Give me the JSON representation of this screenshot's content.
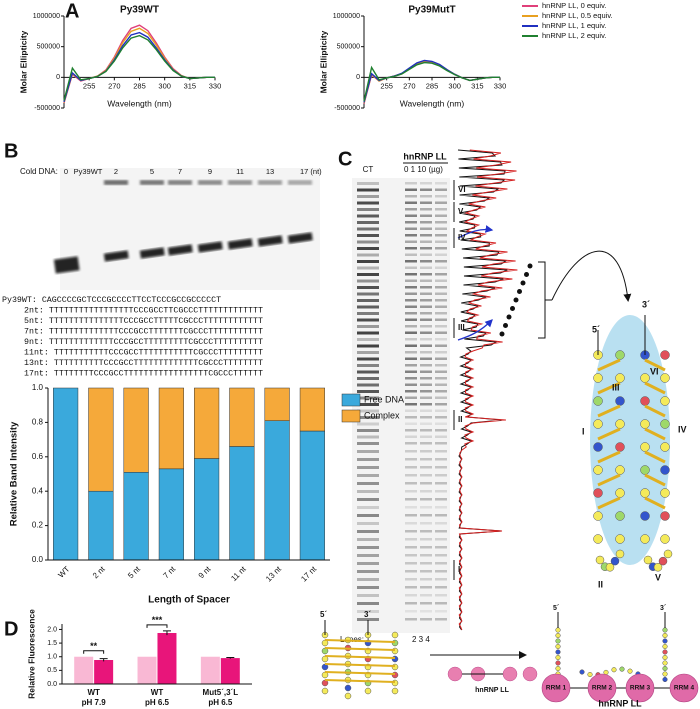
{
  "panels": [
    "A",
    "B",
    "C",
    "D"
  ],
  "chart_data": [
    {
      "type": "line",
      "title": "Py39WT",
      "x_label": "Wavelength (nm)",
      "y_label": "Molar Ellipticity",
      "x": [
        240,
        245,
        250,
        255,
        260,
        265,
        270,
        275,
        280,
        285,
        290,
        295,
        300,
        305,
        310,
        315,
        320,
        325,
        330
      ],
      "xlim": [
        240,
        330
      ],
      "xticks": [
        255,
        270,
        285,
        300,
        315,
        330
      ],
      "ylim": [
        -500000,
        1000000
      ],
      "yticks": [
        -500000,
        0,
        500000,
        1000000
      ],
      "series": [
        {
          "color": "#e0407a",
          "values": [
            -420000,
            50000,
            -60000,
            -20000,
            20000,
            120000,
            330000,
            600000,
            800000,
            850000,
            760000,
            560000,
            330000,
            140000,
            30000,
            -20000,
            -10000,
            0,
            0
          ]
        },
        {
          "color": "#e8a020",
          "values": [
            -410000,
            60000,
            -50000,
            -20000,
            20000,
            110000,
            310000,
            565000,
            750000,
            800000,
            715000,
            525000,
            310000,
            130000,
            25000,
            -20000,
            -10000,
            0,
            0
          ]
        },
        {
          "color": "#2030c0",
          "values": [
            -400000,
            70000,
            -50000,
            -20000,
            15000,
            100000,
            285000,
            515000,
            690000,
            730000,
            655000,
            480000,
            285000,
            120000,
            20000,
            -20000,
            -10000,
            0,
            0
          ]
        },
        {
          "color": "#208030",
          "values": [
            -380000,
            150000,
            -40000,
            -20000,
            15000,
            95000,
            265000,
            480000,
            640000,
            680000,
            610000,
            450000,
            265000,
            110000,
            20000,
            -20000,
            -10000,
            0,
            0
          ]
        }
      ]
    },
    {
      "type": "line",
      "title": "Py39MutT",
      "x_label": "Wavelength (nm)",
      "y_label": "Molar Ellipticity",
      "x": [
        240,
        245,
        250,
        255,
        260,
        265,
        270,
        275,
        280,
        285,
        290,
        295,
        300,
        305,
        310,
        315,
        320,
        325,
        330
      ],
      "xlim": [
        240,
        330
      ],
      "xticks": [
        255,
        270,
        285,
        300,
        315,
        330
      ],
      "ylim": [
        -500000,
        1000000
      ],
      "yticks": [
        -500000,
        0,
        500000,
        1000000
      ],
      "legend": "outside-right",
      "series": [
        {
          "name": "hnRNP LL, 0 equiv.",
          "color": "#e0407a",
          "values": [
            -430000,
            40000,
            -60000,
            -10000,
            20000,
            60000,
            140000,
            220000,
            260000,
            250000,
            200000,
            120000,
            50000,
            -10000,
            -50000,
            -30000,
            -10000,
            0,
            0
          ]
        },
        {
          "name": "hnRNP LL, 0.5 equiv.",
          "color": "#e8a020",
          "values": [
            -420000,
            50000,
            -60000,
            -10000,
            20000,
            60000,
            140000,
            225000,
            265000,
            255000,
            205000,
            125000,
            50000,
            -10000,
            -50000,
            -30000,
            -10000,
            0,
            0
          ]
        },
        {
          "name": "hnRNP LL, 1 equiv.",
          "color": "#2030c0",
          "values": [
            -410000,
            60000,
            -50000,
            -10000,
            20000,
            65000,
            150000,
            235000,
            275000,
            260000,
            210000,
            125000,
            50000,
            -10000,
            -50000,
            -30000,
            -10000,
            0,
            0
          ]
        },
        {
          "name": "hnRNP LL, 2 equiv.",
          "color": "#208030",
          "values": [
            -390000,
            160000,
            -40000,
            -10000,
            15000,
            55000,
            130000,
            205000,
            240000,
            230000,
            185000,
            110000,
            45000,
            -10000,
            -50000,
            -30000,
            -10000,
            0,
            0
          ]
        }
      ]
    },
    {
      "type": "stacked_bar",
      "x_label": "Length of Spacer",
      "y_label": "Relative Band Intensity",
      "categories": [
        "WT",
        "2 nt",
        "5 nt",
        "7 nt",
        "9 nt",
        "11 nt",
        "13 nt",
        "17 nt"
      ],
      "ylim": [
        0,
        1
      ],
      "yticks": [
        {
          "value": 0,
          "label": "0.0"
        },
        0.2,
        0.4,
        0.6,
        0.8,
        {
          "value": 1,
          "label": "1.0"
        }
      ],
      "legend": "right",
      "series": [
        {
          "name": "Free DNA",
          "color": "#3aa9dc",
          "values": [
            1.0,
            0.4,
            0.51,
            0.53,
            0.59,
            0.66,
            0.81,
            0.75
          ]
        },
        {
          "name": "Complex",
          "color": "#f5a93a",
          "values": [
            0,
            0.6,
            0.49,
            0.47,
            0.41,
            0.34,
            0.19,
            0.25
          ]
        }
      ]
    },
    {
      "type": "grouped_bar",
      "y_label": "Relative Fluorescence",
      "categories": [
        [
          "WT",
          "pH 7.9"
        ],
        [
          "WT",
          "pH 6.5"
        ],
        [
          "Mut5´,3´L",
          "pH 6.5"
        ]
      ],
      "ylim": [
        0,
        2.2
      ],
      "yticks": [
        {
          "value": 0,
          "label": "0.0"
        },
        0.5,
        {
          "value": 1,
          "label": "1.0"
        },
        1.5,
        {
          "value": 2,
          "label": "2.0"
        }
      ],
      "annotations": [
        "**",
        "***"
      ],
      "series": [
        {
          "color": "#f9b8d4",
          "values": [
            1.0,
            1.0,
            1.0
          ],
          "errors": [
            0,
            0,
            0
          ]
        },
        {
          "color": "#e8157a",
          "values": [
            0.88,
            1.87,
            0.95
          ],
          "errors": [
            0.05,
            0.08,
            0.02
          ]
        }
      ]
    }
  ],
  "gel_b": {
    "cold_dna": "Cold DNA:",
    "lanes": [
      "0",
      "Py39WT",
      "2",
      "5",
      "7",
      "9",
      "11",
      "13",
      "17 (nt)"
    ]
  },
  "sequences": [
    "Py39WT: CAGCCCCGCTCCCGCCCCTTCCTCCCGCCGCCCCCT",
    "2nt: TTTTTTTTTTTTTTTTTCCCGCCTTCGCCCTTTTTTTTTTTTT",
    "5nt: TTTTTTTTTTTTTTTCCCGCCTTTTTCGCCCTTTTTTTTTTTT",
    "7nt: TTTTTTTTTTTTTTCCCGCCTTTTTTTCGCCCTTTTTTTTTTT",
    "9nt: TTTTTTTTTTTTTCCCGCCTTTTTTTTTCGCCCTTTTTTTTTT",
    "11nt: TTTTTTTTTTTCCCGCCTTTTTTTTTTTCGCCCTTTTTTTTT",
    "13nt: TTTTTTTTTTCCCGCCTTTTTTTTTTTTTCGCCCTTTTTTTT",
    "17nt: TTTTTTTTCCCGCCTTTTTTTTTTTTTTTTTCGCCCTTTTTT"
  ],
  "footprint": {
    "protein": "hnRNP LL",
    "ct": "CT",
    "amounts": "0 1 10 (µg)",
    "regions": [
      "VI",
      "V",
      "IV",
      "III",
      "II",
      "I"
    ],
    "lanes_label": "Lanes:",
    "lane_1": "1",
    "lanes_2_4": "2 3 4"
  },
  "diagram_c": {
    "five": "5´",
    "three": "3´",
    "strands": [
      "I",
      "III",
      "VI",
      "IV",
      "II",
      "V"
    ]
  },
  "diagram_d": {
    "five": "5´",
    "three": "3´",
    "protein": "hnRNP LL",
    "five_b": "5´",
    "three_b": "3´",
    "rrms": [
      "RRM 1",
      "RRM 2",
      "RRM 3",
      "RRM 4"
    ],
    "protein_b": "hnRNP LL"
  }
}
